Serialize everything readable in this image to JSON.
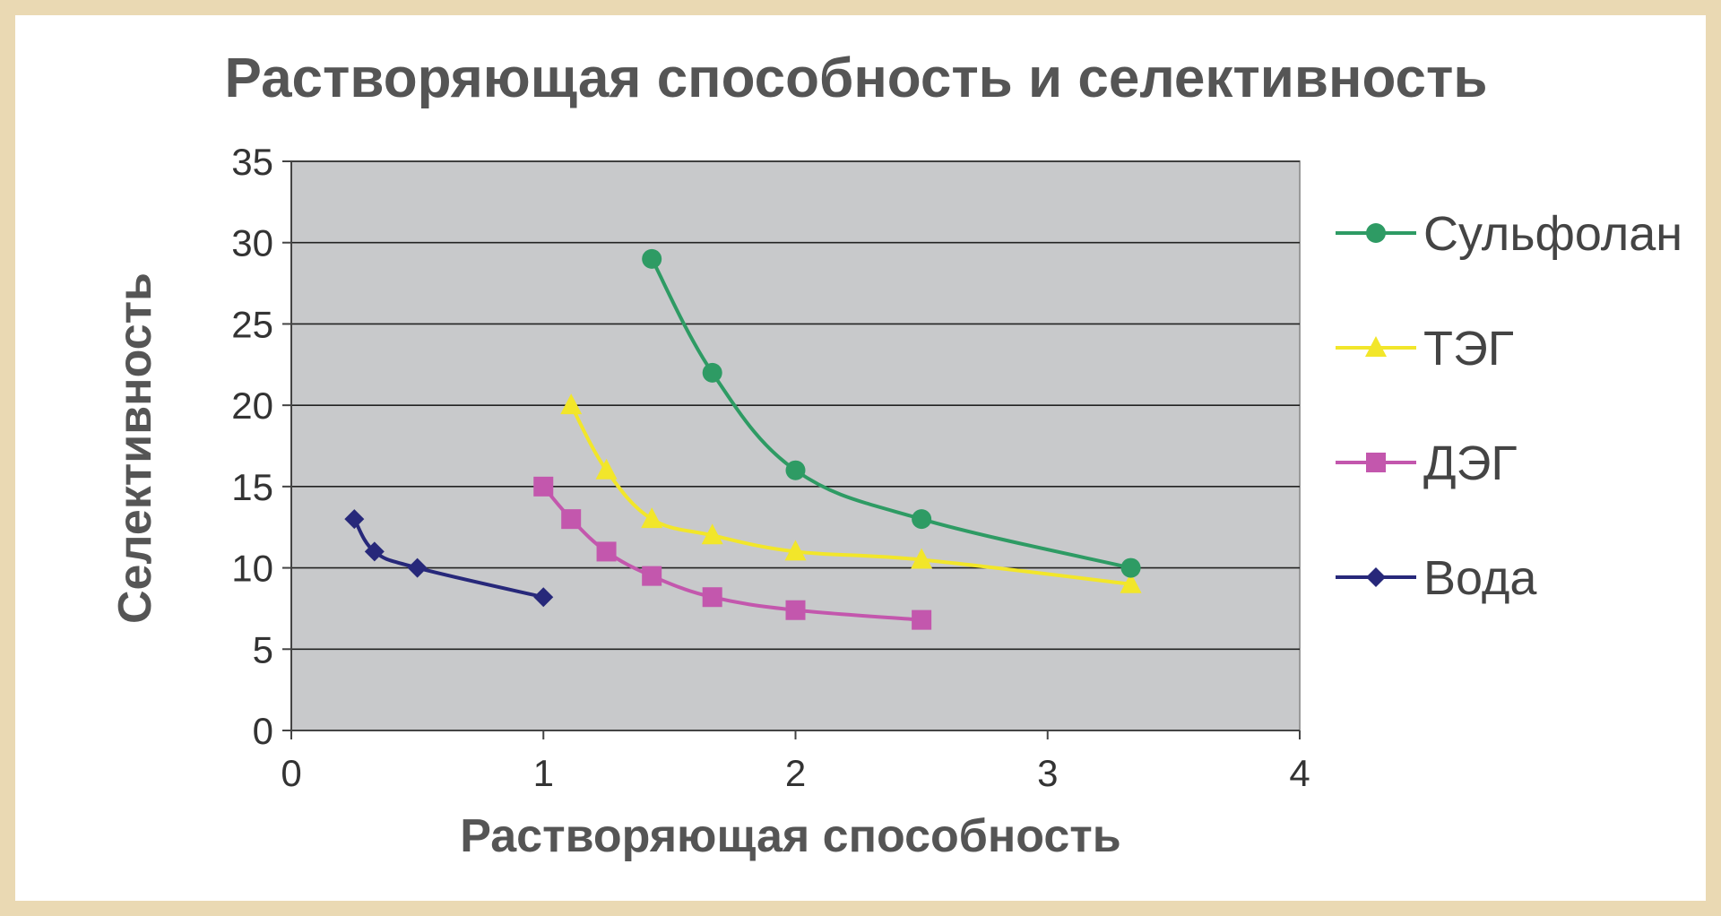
{
  "chart_data": {
    "type": "line",
    "title": "Растворяющая способность и селективность",
    "xlabel": "Растворяющая способность",
    "ylabel": "Селективность",
    "xlim": [
      0,
      4
    ],
    "ylim": [
      0,
      35
    ],
    "xticks": [
      0,
      1,
      2,
      3,
      4
    ],
    "yticks": [
      0,
      5,
      10,
      15,
      20,
      25,
      30,
      35
    ],
    "grid": "horizontal",
    "legend_position": "right",
    "plot_background": "#c8c9cb",
    "series": [
      {
        "name": "Сульфолан",
        "color": "#2e9b64",
        "marker": "circle",
        "x": [
          1.43,
          1.67,
          2.0,
          2.5,
          3.33
        ],
        "y": [
          29,
          22,
          16,
          13,
          10
        ]
      },
      {
        "name": "ТЭГ",
        "color": "#f2e62a",
        "marker": "triangle",
        "x": [
          1.11,
          1.25,
          1.43,
          1.67,
          2.0,
          2.5,
          3.33
        ],
        "y": [
          20,
          16,
          13,
          12,
          11,
          10.5,
          9
        ]
      },
      {
        "name": "ДЭГ",
        "color": "#c357ad",
        "marker": "square",
        "x": [
          1.0,
          1.11,
          1.25,
          1.43,
          1.67,
          2.0,
          2.5
        ],
        "y": [
          15,
          13,
          11,
          9.5,
          8.2,
          7.4,
          6.8
        ]
      },
      {
        "name": "Вода",
        "color": "#27287a",
        "marker": "diamond",
        "x": [
          0.25,
          0.33,
          0.5,
          1.0
        ],
        "y": [
          13,
          11,
          10,
          8.2
        ]
      }
    ]
  }
}
